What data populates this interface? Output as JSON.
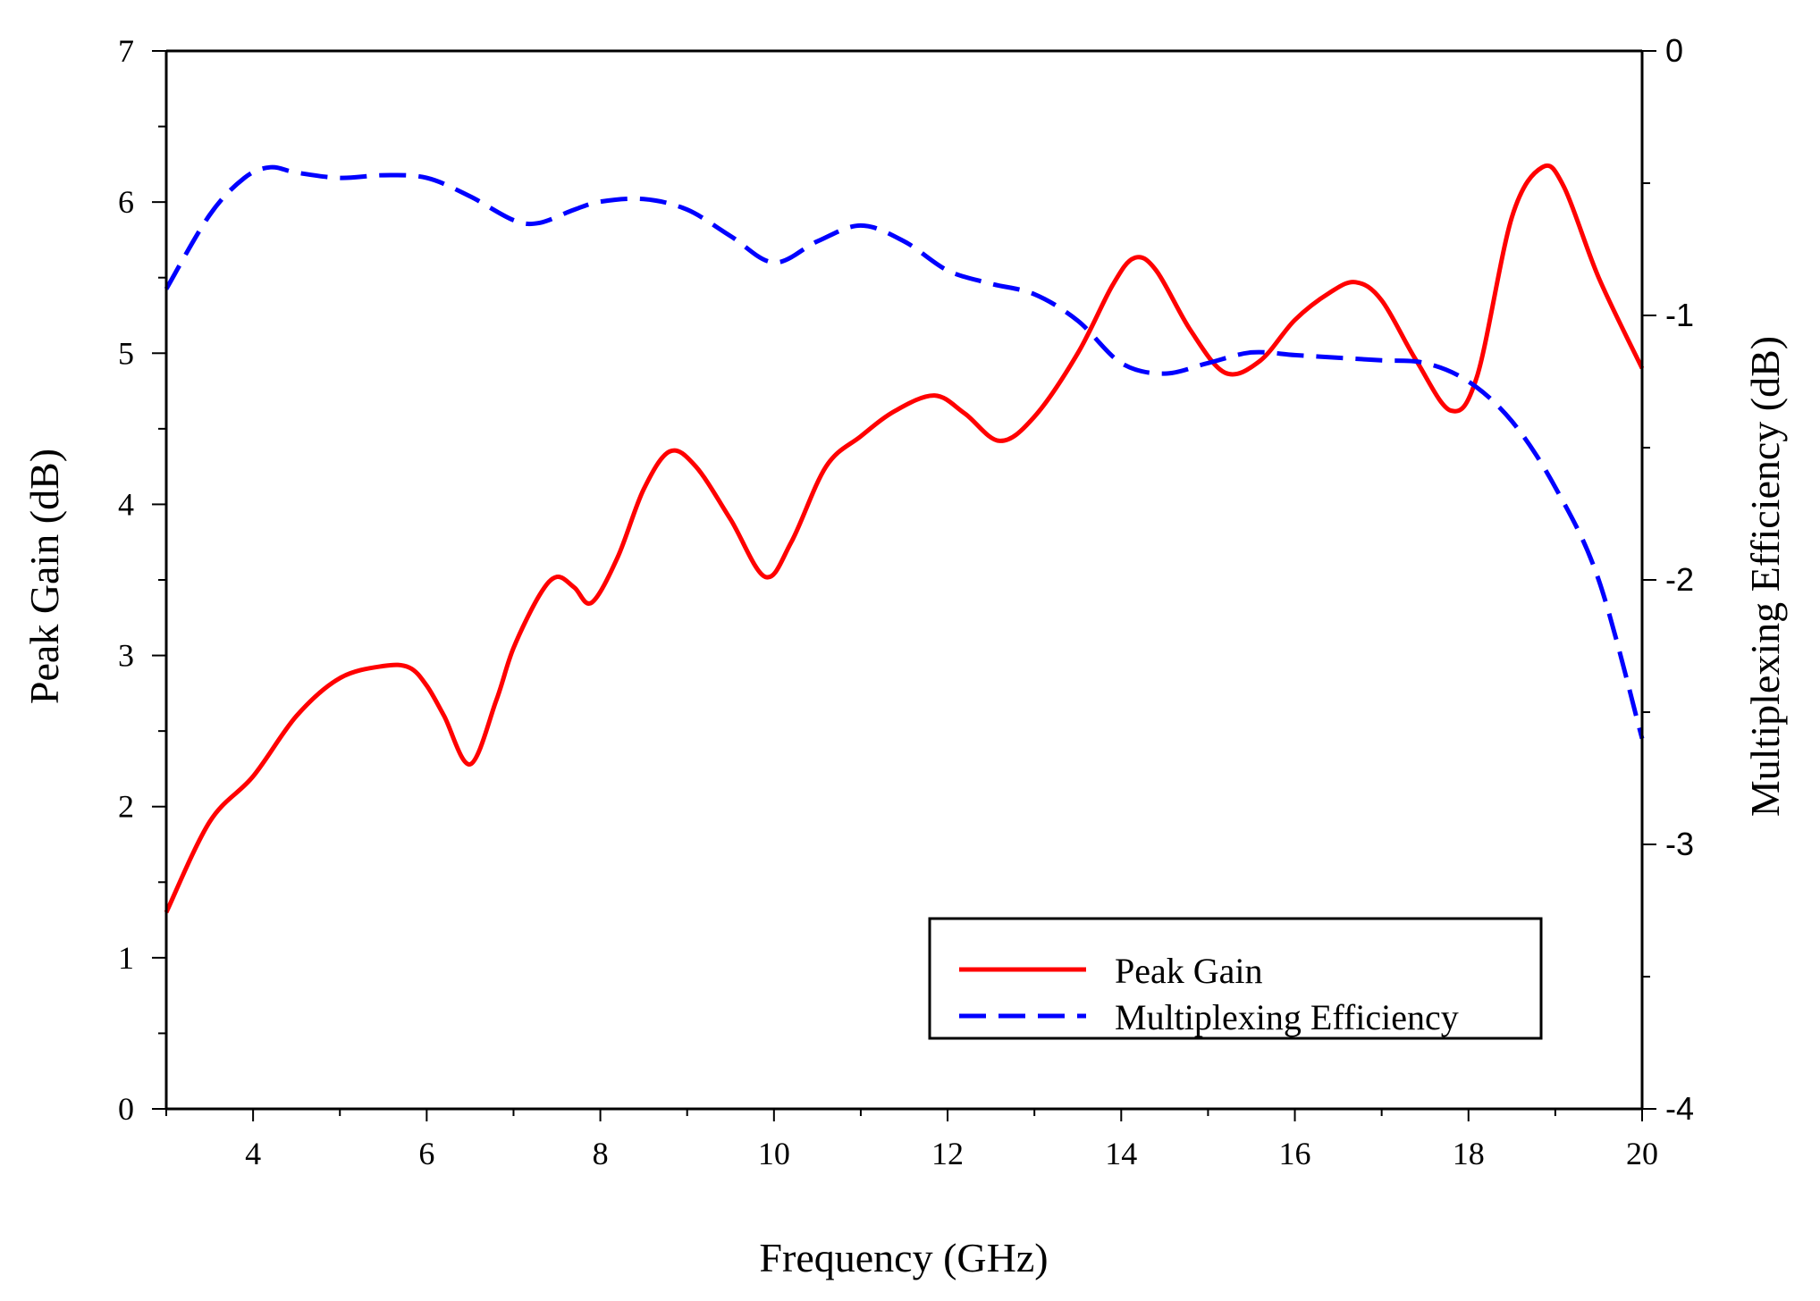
{
  "chart_data": {
    "type": "line",
    "title": "",
    "xlabel": "Frequency (GHz)",
    "ylabel": "Peak Gain (dB)",
    "y2label": "Multiplexing Efficiency (dB)",
    "xlim": [
      3,
      20
    ],
    "ylim": [
      0,
      7
    ],
    "y2lim": [
      -4,
      0
    ],
    "x_ticks": [
      4,
      6,
      8,
      10,
      12,
      14,
      16,
      18,
      20
    ],
    "y_ticks": [
      0,
      1,
      2,
      3,
      4,
      5,
      6,
      7
    ],
    "y2_ticks": [
      0,
      -1,
      -2,
      -3,
      -4
    ],
    "grid": false,
    "legend_position": "bottom-right",
    "series": [
      {
        "name": "Peak Gain",
        "axis": "left",
        "color": "#ff0000",
        "style": "solid",
        "x": [
          3.0,
          3.5,
          4.0,
          4.5,
          5.0,
          5.5,
          5.8,
          6.0,
          6.2,
          6.5,
          6.8,
          7.0,
          7.3,
          7.5,
          7.7,
          7.9,
          8.2,
          8.5,
          8.8,
          9.1,
          9.5,
          9.9,
          10.2,
          10.6,
          11.0,
          11.4,
          11.85,
          12.2,
          12.6,
          13.0,
          13.5,
          13.9,
          14.15,
          14.4,
          14.8,
          15.2,
          15.6,
          16.0,
          16.4,
          16.7,
          17.0,
          17.4,
          17.8,
          18.1,
          18.5,
          18.85,
          19.1,
          19.5,
          20.0
        ],
        "values": [
          1.3,
          1.9,
          2.2,
          2.6,
          2.85,
          2.93,
          2.92,
          2.8,
          2.6,
          2.28,
          2.7,
          3.05,
          3.4,
          3.52,
          3.45,
          3.35,
          3.65,
          4.1,
          4.35,
          4.25,
          3.9,
          3.52,
          3.75,
          4.25,
          4.45,
          4.62,
          4.72,
          4.6,
          4.42,
          4.58,
          5.0,
          5.45,
          5.63,
          5.55,
          5.15,
          4.87,
          4.95,
          5.22,
          5.4,
          5.47,
          5.35,
          4.95,
          4.62,
          4.85,
          5.9,
          6.23,
          6.1,
          5.5,
          4.9
        ]
      },
      {
        "name": "Multiplexing Efficiency",
        "axis": "right",
        "color": "#0000ff",
        "style": "dashed",
        "x": [
          3.0,
          3.5,
          3.9,
          4.2,
          4.5,
          5.0,
          5.5,
          6.0,
          6.5,
          7.0,
          7.3,
          7.7,
          8.0,
          8.5,
          9.0,
          9.5,
          10.0,
          10.5,
          11.0,
          11.5,
          12.0,
          12.5,
          13.0,
          13.5,
          14.0,
          14.5,
          15.0,
          15.5,
          16.0,
          16.5,
          17.0,
          17.5,
          18.0,
          18.5,
          19.0,
          19.5,
          20.0
        ],
        "values": [
          -0.9,
          -0.62,
          -0.48,
          -0.44,
          -0.46,
          -0.48,
          -0.47,
          -0.48,
          -0.55,
          -0.64,
          -0.65,
          -0.6,
          -0.57,
          -0.56,
          -0.6,
          -0.7,
          -0.8,
          -0.72,
          -0.66,
          -0.72,
          -0.83,
          -0.88,
          -0.92,
          -1.02,
          -1.18,
          -1.22,
          -1.18,
          -1.14,
          -1.15,
          -1.16,
          -1.17,
          -1.18,
          -1.25,
          -1.4,
          -1.65,
          -2.0,
          -2.6
        ]
      }
    ]
  }
}
